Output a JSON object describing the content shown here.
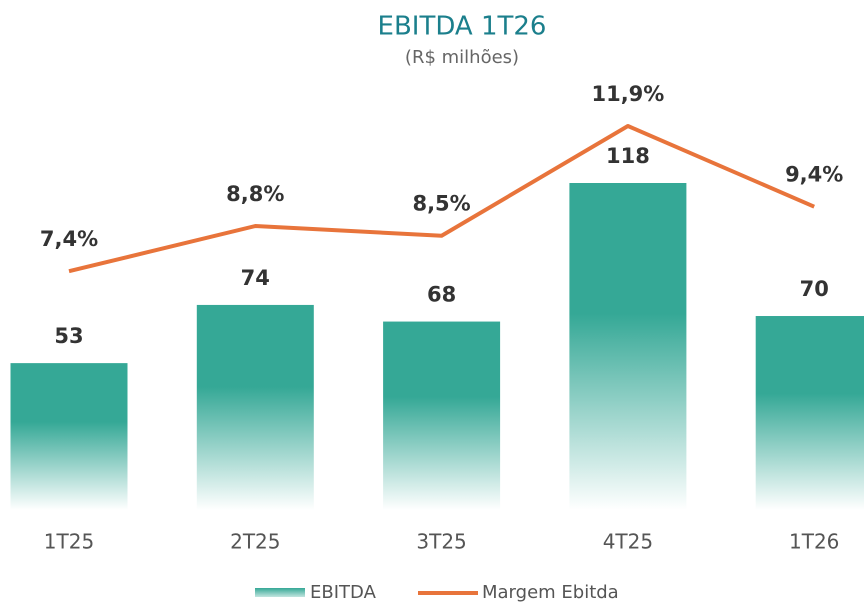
{
  "chart_data": {
    "type": "bar",
    "title": "EBITDA 1T26",
    "subtitle": "(R$ milhões)",
    "categories": [
      "1T25",
      "2T25",
      "3T25",
      "4T25",
      "1T26"
    ],
    "series": [
      {
        "name": "EBITDA",
        "type": "bar",
        "color": "#35a896",
        "values": [
          53,
          74,
          68,
          118,
          70
        ]
      },
      {
        "name": "Margem Ebitda",
        "type": "line",
        "axis": "y2",
        "color": "#e8743b",
        "values": [
          7.4,
          8.8,
          8.5,
          11.9,
          9.4
        ],
        "value_labels": [
          "7,4%",
          "8,8%",
          "8,5%",
          "11,9%",
          "9,4%"
        ]
      }
    ],
    "legend": "bottom",
    "grid": false
  }
}
